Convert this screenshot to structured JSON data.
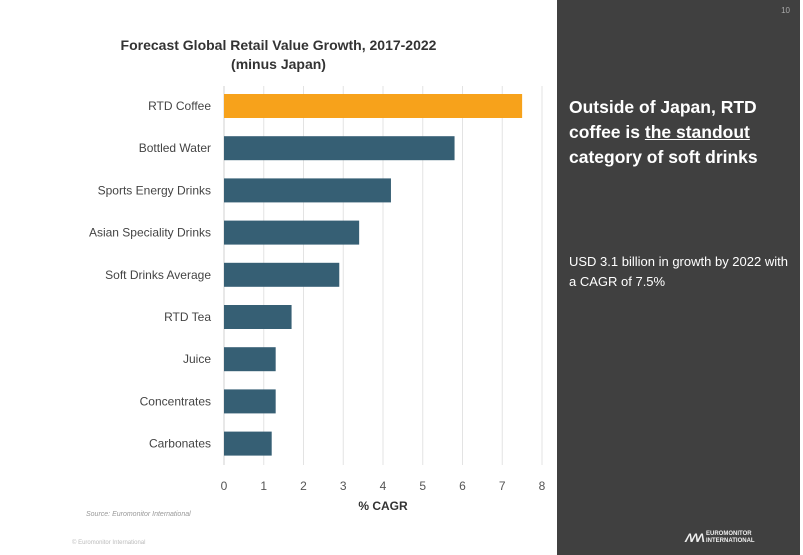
{
  "chart_data": {
    "type": "bar",
    "orientation": "horizontal",
    "title": "Forecast Global Retail Value Growth, 2017-2022",
    "subtitle": "(minus Japan)",
    "categories": [
      "RTD Coffee",
      "Bottled Water",
      "Sports Energy Drinks",
      "Asian Speciality Drinks",
      "Soft Drinks Average",
      "RTD Tea",
      "Juice",
      "Concentrates",
      "Carbonates"
    ],
    "values": [
      7.5,
      5.8,
      4.2,
      3.4,
      2.9,
      1.7,
      1.3,
      1.3,
      1.2
    ],
    "highlight_category": "RTD Coffee",
    "xlabel": "% CAGR",
    "ylabel": "",
    "xlim": [
      0,
      8
    ],
    "xticks": [
      "0",
      "1",
      "2",
      "3",
      "4",
      "5",
      "6",
      "7",
      "8"
    ],
    "grid": true,
    "colors": {
      "default": "#365f74",
      "highlight": "#f7a21b"
    }
  },
  "source": "Source: Euromonitor International",
  "copyright": "© Euromonitor International",
  "page_number": "10",
  "panel": {
    "headline_part1": "Outside of Japan, RTD coffee is ",
    "headline_underlined": "the standout",
    "headline_part2": " category of soft drinks",
    "body": "USD 3.1 billion in growth by 2022 with a CAGR of 7.5%"
  },
  "logo": {
    "line1": "EUROMONITOR",
    "line2": "INTERNATIONAL"
  }
}
